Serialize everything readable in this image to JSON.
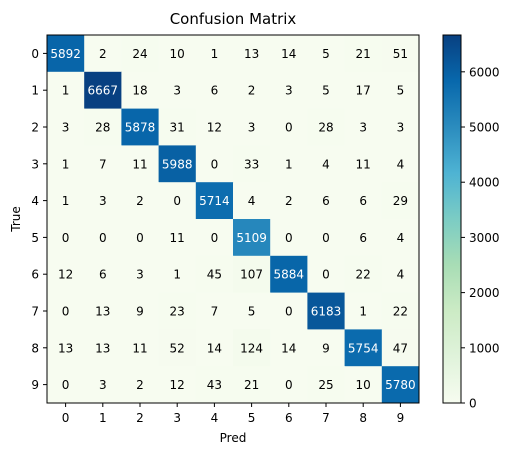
{
  "chart_data": {
    "type": "heatmap",
    "title": "Confusion Matrix",
    "xlabel": "Pred",
    "ylabel": "True",
    "x_categories": [
      "0",
      "1",
      "2",
      "3",
      "4",
      "5",
      "6",
      "7",
      "8",
      "9"
    ],
    "y_categories": [
      "0",
      "1",
      "2",
      "3",
      "4",
      "5",
      "6",
      "7",
      "8",
      "9"
    ],
    "values": [
      [
        5892,
        2,
        24,
        10,
        1,
        13,
        14,
        5,
        21,
        51
      ],
      [
        1,
        6667,
        18,
        3,
        6,
        2,
        3,
        5,
        17,
        5
      ],
      [
        3,
        28,
        5878,
        31,
        12,
        3,
        0,
        28,
        3,
        3
      ],
      [
        1,
        7,
        11,
        5988,
        0,
        33,
        1,
        4,
        11,
        4
      ],
      [
        1,
        3,
        2,
        0,
        5714,
        4,
        2,
        6,
        6,
        29
      ],
      [
        0,
        0,
        0,
        11,
        0,
        5109,
        0,
        0,
        6,
        4
      ],
      [
        12,
        6,
        3,
        1,
        45,
        107,
        5884,
        0,
        22,
        4
      ],
      [
        0,
        13,
        9,
        23,
        7,
        5,
        0,
        6183,
        1,
        22
      ],
      [
        13,
        13,
        11,
        52,
        14,
        124,
        14,
        9,
        5754,
        47
      ],
      [
        0,
        3,
        2,
        12,
        43,
        21,
        0,
        25,
        10,
        5780
      ]
    ],
    "colormap": "GnBu",
    "colorbar": {
      "vmin": 0,
      "vmax": 6667,
      "ticks": [
        0,
        1000,
        2000,
        3000,
        4000,
        5000,
        6000
      ]
    },
    "cell_label_colors": {
      "dark_background": "#ffffff",
      "light_background": "#000000"
    }
  }
}
